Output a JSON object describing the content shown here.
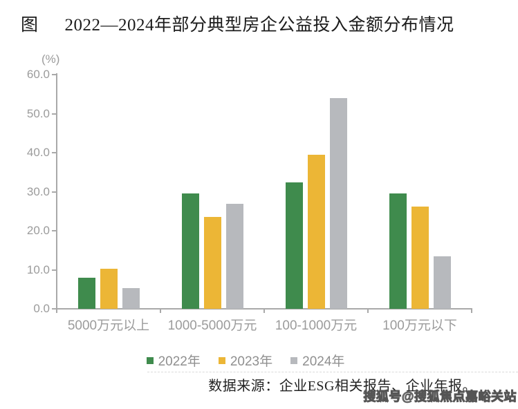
{
  "figure": {
    "prefix": "图",
    "title": "2022—2024年部分典型房企公益投入金额分布情况"
  },
  "chart_data": {
    "type": "bar",
    "title": "2022—2024年部分典型房企公益投入金额分布情况",
    "unit_label": "(%)",
    "categories": [
      "5000万元以上",
      "1000-5000万元",
      "100-1000万元",
      "100万元以下"
    ],
    "series": [
      {
        "name": "2022年",
        "color": "#3f8b4d",
        "values": [
          8.0,
          29.5,
          32.4,
          29.5
        ]
      },
      {
        "name": "2023年",
        "color": "#ecb636",
        "values": [
          10.3,
          23.6,
          39.4,
          26.2
        ]
      },
      {
        "name": "2024年",
        "color": "#b7b9bd",
        "values": [
          5.4,
          26.9,
          53.9,
          13.4
        ]
      }
    ],
    "xlabel": "",
    "ylabel": "(%)",
    "ylim": [
      0,
      60
    ],
    "ytick_labels": [
      "0.0",
      "10.0",
      "20.0",
      "30.0",
      "40.0",
      "50.0",
      "60.0"
    ],
    "grid": false,
    "legend_position": "bottom"
  },
  "source": {
    "text": "数据来源：企业ESG相关报告、企业年报。"
  },
  "watermark": {
    "text": "搜狐号@搜狐焦点嘉峪关站"
  },
  "colors": {
    "green": "#3f8b4d",
    "yellow": "#ecb636",
    "gray": "#b7b9bd",
    "axis": "#a9a9a9",
    "tick_text": "#9b9b9b"
  }
}
